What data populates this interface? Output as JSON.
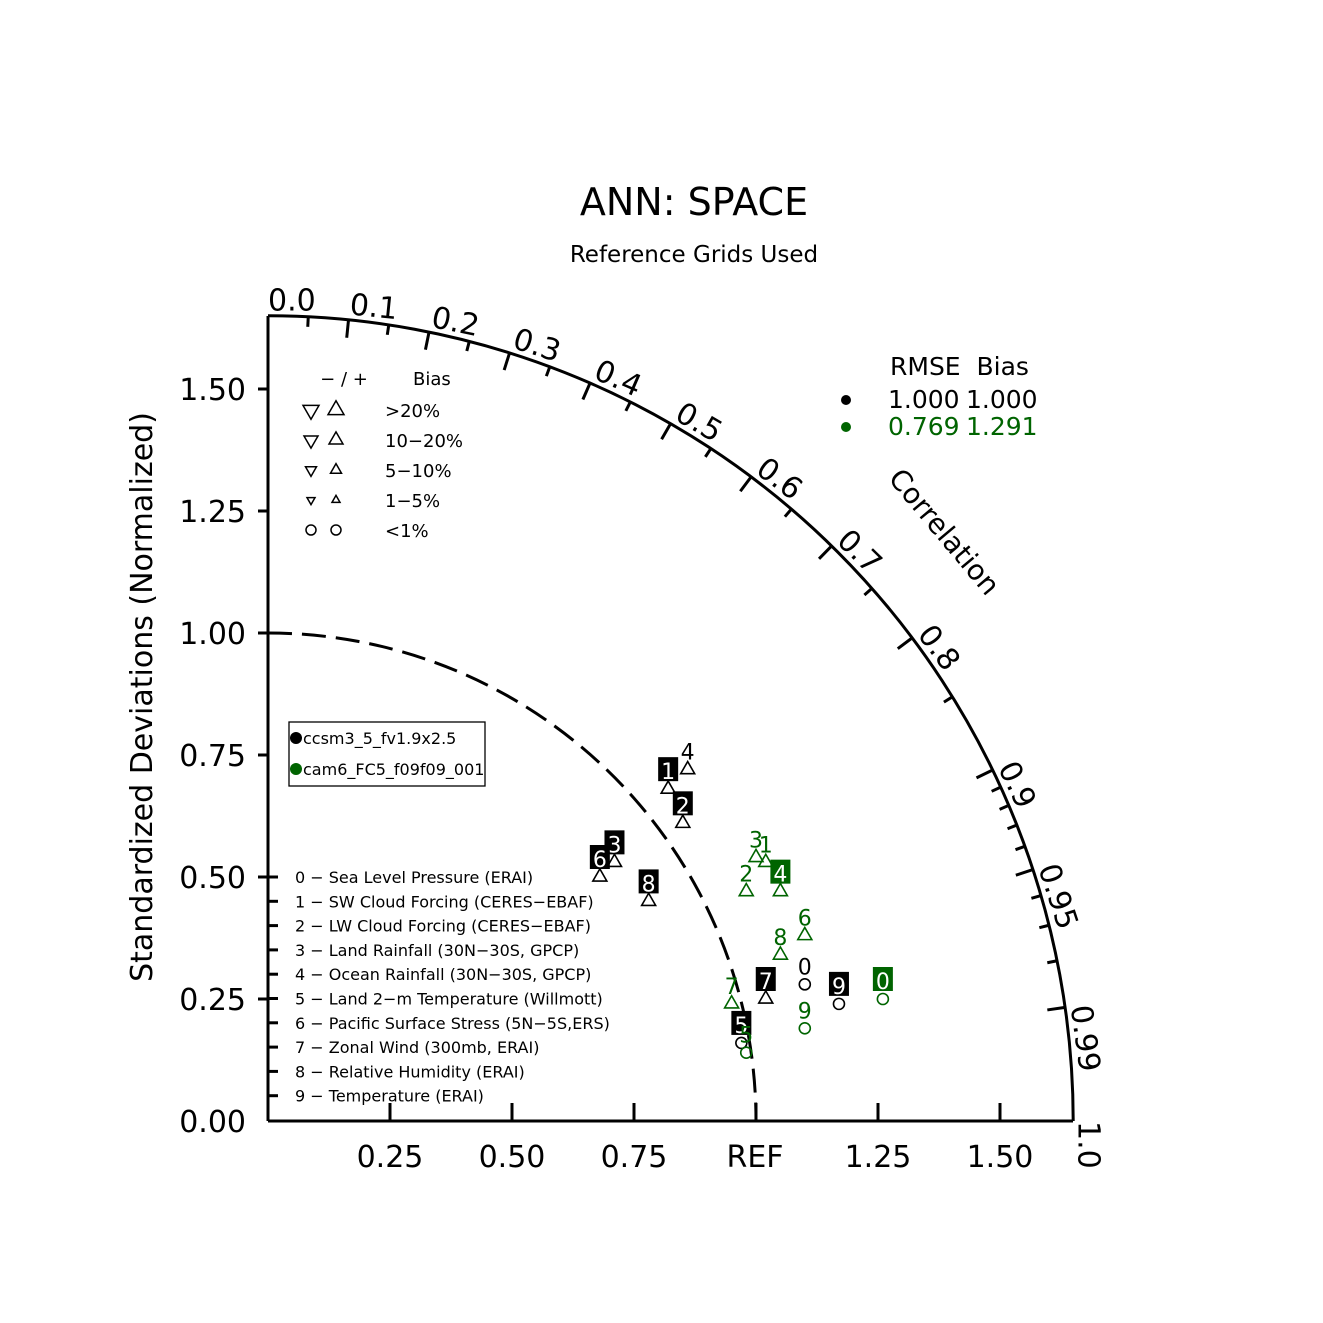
{
  "chart_data": {
    "type": "taylor",
    "title": "ANN: SPACE",
    "subtitle": "Reference Grids Used",
    "ylabel": "Standardized Deviations (Normalized)",
    "correlation_label": "Correlation",
    "ref_label": "REF",
    "std_range": [
      0,
      1.65
    ],
    "y_ticks": [
      "0.00",
      "0.25",
      "0.50",
      "0.75",
      "1.00",
      "1.25",
      "1.50"
    ],
    "x_ticks": [
      "0.25",
      "0.50",
      "0.75",
      "1.25",
      "1.50"
    ],
    "correlation_ticks": [
      "0.0",
      "0.1",
      "0.2",
      "0.3",
      "0.4",
      "0.5",
      "0.6",
      "0.7",
      "0.8",
      "0.9",
      "0.95",
      "0.99",
      "1.0"
    ],
    "bias_legend": {
      "header_sign": "− / +",
      "header_bias": "Bias",
      "rows": [
        ">20%",
        "10−20%",
        "5−10%",
        "1−5%",
        "<1%"
      ]
    },
    "rmse_legend": {
      "header": "RMSE  Bias",
      "rows": [
        {
          "rmse": "1.000",
          "bias": "1.000",
          "color": "#000000"
        },
        {
          "rmse": "0.769",
          "bias": "1.291",
          "color": "#006400"
        }
      ]
    },
    "cases": [
      {
        "name": "ccsm3_5_fv1.9x2.5",
        "color": "#000000"
      },
      {
        "name": "cam6_FC5_f09f09_001",
        "color": "#006400"
      }
    ],
    "variables": [
      "0 − Sea Level Pressure (ERAI)",
      "1 − SW Cloud Forcing (CERES−EBAF)",
      "2 − LW Cloud Forcing (CERES−EBAF)",
      "3 − Land Rainfall (30N−30S, GPCP)",
      "4 − Ocean Rainfall (30N−30S, GPCP)",
      "5 − Land 2−m Temperature (Willmott)",
      "6 − Pacific Surface Stress (5N−5S,ERS)",
      "7 − Zonal Wind (300mb, ERAI)",
      "8 − Relative Humidity (ERAI)",
      "9 − Temperature (ERAI)"
    ],
    "series": [
      {
        "name": "ccsm3_5_fv1.9x2.5",
        "color": "#000000",
        "points": [
          {
            "id": "0",
            "x": 1.1,
            "y": 0.28,
            "marker": "circle"
          },
          {
            "id": "1",
            "x": 0.82,
            "y": 0.68,
            "marker": "up",
            "boxed": true
          },
          {
            "id": "2",
            "x": 0.85,
            "y": 0.61,
            "marker": "up",
            "boxed": true
          },
          {
            "id": "3",
            "x": 0.71,
            "y": 0.53,
            "marker": "up",
            "boxed": true
          },
          {
            "id": "4",
            "x": 0.86,
            "y": 0.72,
            "marker": "up"
          },
          {
            "id": "5",
            "x": 0.97,
            "y": 0.16,
            "marker": "circle",
            "boxed": true
          },
          {
            "id": "6",
            "x": 0.68,
            "y": 0.5,
            "marker": "up",
            "boxed": true
          },
          {
            "id": "7",
            "x": 1.02,
            "y": 0.25,
            "marker": "up",
            "boxed": true
          },
          {
            "id": "8",
            "x": 0.78,
            "y": 0.45,
            "marker": "up",
            "boxed": true
          },
          {
            "id": "9",
            "x": 1.17,
            "y": 0.24,
            "marker": "circle",
            "boxed": true
          }
        ]
      },
      {
        "name": "cam6_FC5_f09f09_001",
        "color": "#006400",
        "points": [
          {
            "id": "0",
            "x": 1.26,
            "y": 0.25,
            "marker": "circle",
            "boxed": true
          },
          {
            "id": "1",
            "x": 1.02,
            "y": 0.53,
            "marker": "up"
          },
          {
            "id": "2",
            "x": 0.98,
            "y": 0.47,
            "marker": "up"
          },
          {
            "id": "3",
            "x": 1.0,
            "y": 0.54,
            "marker": "up"
          },
          {
            "id": "4",
            "x": 1.05,
            "y": 0.47,
            "marker": "up",
            "boxed": true
          },
          {
            "id": "5",
            "x": 0.98,
            "y": 0.14,
            "marker": "circle"
          },
          {
            "id": "6",
            "x": 1.1,
            "y": 0.38,
            "marker": "up"
          },
          {
            "id": "7",
            "x": 0.95,
            "y": 0.24,
            "marker": "up"
          },
          {
            "id": "8",
            "x": 1.05,
            "y": 0.34,
            "marker": "up"
          },
          {
            "id": "9",
            "x": 1.1,
            "y": 0.19,
            "marker": "circle"
          }
        ]
      }
    ]
  }
}
